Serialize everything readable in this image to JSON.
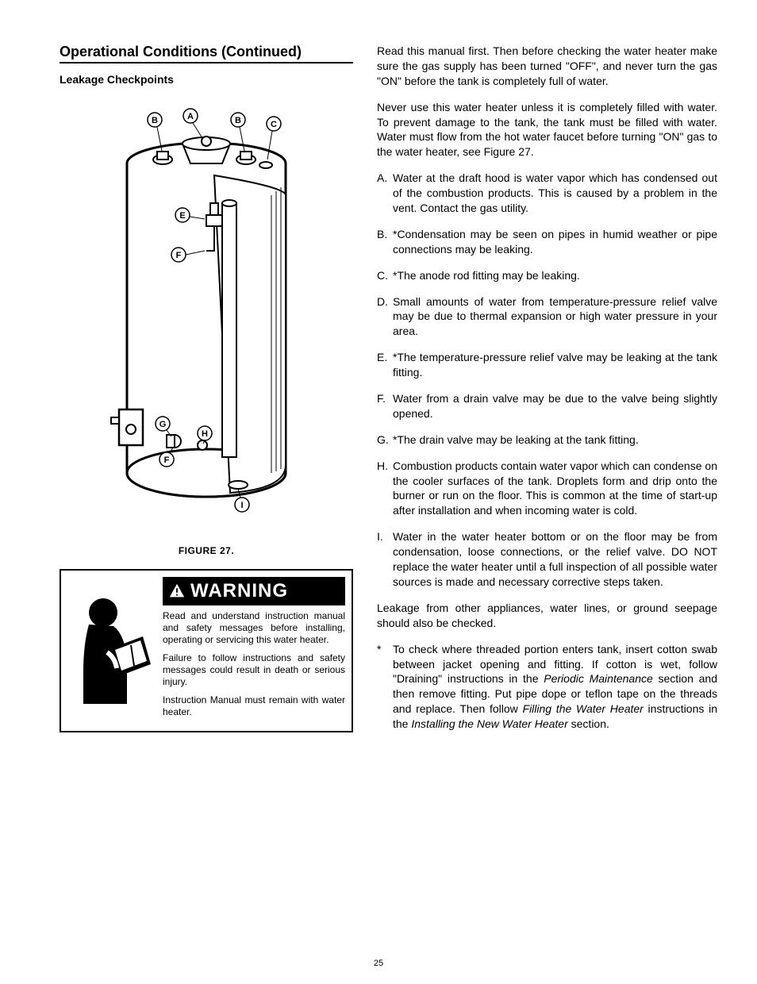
{
  "left": {
    "section_title": "Operational Conditions (Continued)",
    "sub_title": "Leakage Checkpoints",
    "figure_caption": "FIGURE 27.",
    "callouts": [
      "B",
      "A",
      "B",
      "C",
      "E",
      "F",
      "G",
      "H",
      "F",
      "I"
    ]
  },
  "warning": {
    "banner": "WARNING",
    "p1": "Read and understand instruction manual and safety messages before installing, operating or servicing this water heater.",
    "p2": "Failure to follow instructions and safety messages could result in death or serious injury.",
    "p3": "Instruction Manual must remain with water heater."
  },
  "right": {
    "intro1": "Read this manual first. Then before checking the water heater make sure the gas supply has been turned \"OFF\", and never turn the gas \"ON\" before the tank is completely full of water.",
    "intro2": "Never use this water heater unless it is completely filled with water. To prevent damage to the tank, the tank must be filled with water. Water must flow from the hot water faucet before turning \"ON\" gas to the water heater, see Figure 27.",
    "items": [
      {
        "label": "A.",
        "text": "Water at the draft hood is water vapor which has condensed out of the combustion products. This is caused by a problem in the vent. Contact the gas utility."
      },
      {
        "label": "B.",
        "text": "*Condensation may be seen on pipes in humid weather or pipe connections may be leaking."
      },
      {
        "label": "C.",
        "text": "*The anode rod fitting may be leaking."
      },
      {
        "label": "D.",
        "text": "Small amounts of water from temperature-pressure relief valve may be due to thermal expansion or high water pressure in your area."
      },
      {
        "label": "E.",
        "text": "*The temperature-pressure relief valve may be leaking at the tank fitting."
      },
      {
        "label": "F.",
        "text": "Water from a drain valve may be due to the valve being slightly opened."
      },
      {
        "label": "G.",
        "text": "*The drain valve may be leaking at the tank fitting."
      },
      {
        "label": "H.",
        "text": "Combustion products contain water vapor which can condense on the cooler surfaces of the tank. Droplets form and drip onto the burner or run on the floor. This is common at the time of start-up after installation and when incoming water is cold."
      },
      {
        "label": "I.",
        "text": "Water in the water heater bottom or on the floor may be from condensation, loose connections, or the relief valve. DO NOT replace the water heater until a full inspection of all possible water sources is made and necessary corrective steps taken."
      }
    ],
    "outro1": "Leakage from other appliances, water lines, or ground seepage should also be checked.",
    "star_label": "*",
    "star_pre": "To check where threaded portion enters tank, insert cotton swab between jacket opening and fitting. If cotton is wet, follow \"Draining\" instructions in the ",
    "star_it1": "Periodic Maintenance",
    "star_mid": " section and then remove fitting. Put pipe dope or teflon tape on the threads and replace. Then follow ",
    "star_it2": "Filling the Water Heater",
    "star_mid2": " instructions in the ",
    "star_it3": "Installing the New Water Heater",
    "star_end": " section."
  },
  "page_number": "25"
}
